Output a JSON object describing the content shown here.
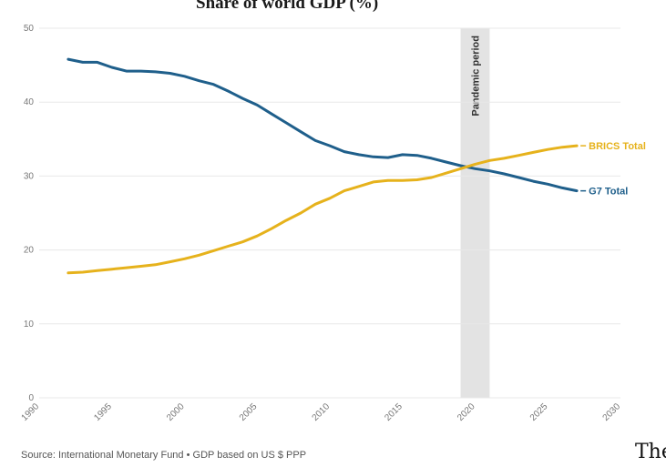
{
  "page": {
    "title": "Share of world GDP (%)",
    "source": "Source: International Monetary Fund • GDP based on US $ PPP",
    "trailing_text": "The"
  },
  "chart_data": {
    "type": "line",
    "title": "Share of world GDP (%)",
    "xlabel": "",
    "ylabel": "",
    "xlim": [
      1990,
      2030
    ],
    "ylim": [
      0,
      50
    ],
    "x_ticks": [
      1990,
      1995,
      2000,
      2005,
      2010,
      2015,
      2020,
      2025,
      2030
    ],
    "y_ticks": [
      0,
      10,
      20,
      30,
      40,
      50
    ],
    "grid": "horizontal",
    "legend": "direct labels at line ends",
    "annotations": [
      {
        "type": "band",
        "label": "Pandemic period",
        "x_start": 2019,
        "x_end": 2021
      }
    ],
    "series": [
      {
        "name": "G7 Total",
        "color": "#1f5f8b",
        "x": [
          1992,
          1993,
          1994,
          1995,
          1996,
          1997,
          1998,
          1999,
          2000,
          2001,
          2002,
          2003,
          2004,
          2005,
          2006,
          2007,
          2008,
          2009,
          2010,
          2011,
          2012,
          2013,
          2014,
          2015,
          2016,
          2017,
          2018,
          2019,
          2020,
          2021,
          2022,
          2023,
          2024,
          2025,
          2026,
          2027
        ],
        "values": [
          45.8,
          45.4,
          45.4,
          44.7,
          44.2,
          44.2,
          44.1,
          43.9,
          43.5,
          42.9,
          42.4,
          41.5,
          40.5,
          39.6,
          38.4,
          37.2,
          36.0,
          34.8,
          34.1,
          33.3,
          32.9,
          32.6,
          32.5,
          32.9,
          32.8,
          32.4,
          31.9,
          31.4,
          31.0,
          30.7,
          30.3,
          29.8,
          29.3,
          28.9,
          28.4,
          28.0
        ]
      },
      {
        "name": "BRICS Total",
        "color": "#e6b21c",
        "x": [
          1992,
          1993,
          1994,
          1995,
          1996,
          1997,
          1998,
          1999,
          2000,
          2001,
          2002,
          2003,
          2004,
          2005,
          2006,
          2007,
          2008,
          2009,
          2010,
          2011,
          2012,
          2013,
          2014,
          2015,
          2016,
          2017,
          2018,
          2019,
          2020,
          2021,
          2022,
          2023,
          2024,
          2025,
          2026,
          2027
        ],
        "values": [
          16.9,
          17.0,
          17.2,
          17.4,
          17.6,
          17.8,
          18.0,
          18.4,
          18.8,
          19.3,
          19.9,
          20.5,
          21.1,
          21.9,
          22.9,
          24.0,
          25.0,
          26.2,
          27.0,
          28.0,
          28.6,
          29.2,
          29.4,
          29.4,
          29.5,
          29.8,
          30.4,
          31.0,
          31.6,
          32.1,
          32.4,
          32.8,
          33.2,
          33.6,
          33.9,
          34.1
        ]
      }
    ]
  }
}
